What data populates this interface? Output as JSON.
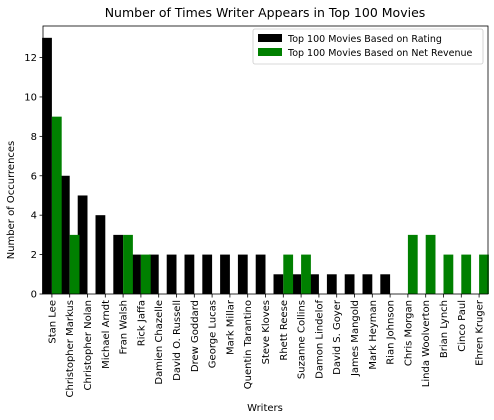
{
  "chart_data": {
    "type": "bar",
    "title": "Number of Times Writer Appears in Top 100 Movies",
    "xlabel": "Writers",
    "ylabel": "Number of Occurrences",
    "ylim": [
      0,
      13.6
    ],
    "yticks": [
      0,
      2,
      4,
      6,
      8,
      10,
      12
    ],
    "legend_position": "top-right",
    "grid": false,
    "categories": [
      "Stan Lee",
      "Christopher Markus",
      "Christopher Nolan",
      "Michael Arndt",
      "Fran Walsh",
      "Rick Jaffa",
      "Damien Chazelle",
      "David O. Russell",
      "Drew Goddard",
      "George Lucas",
      "Mark Millar",
      "Quentin Tarantino",
      "Steve Kloves",
      "Rhett Reese",
      "Suzanne Collins",
      "Damon Lindelof",
      "David S. Goyer",
      "James Mangold",
      "Mark Heyman",
      "Rian Johnson",
      "Chris Morgan",
      "Linda Woolverton",
      "Brian Lynch",
      "Cinco Paul",
      "Ehren Kruger"
    ],
    "series": [
      {
        "name": "Top 100 Movies Based on Rating",
        "color": "#000000",
        "values": [
          13,
          6,
          5,
          4,
          3,
          2,
          2,
          2,
          2,
          2,
          2,
          2,
          2,
          1,
          1,
          1,
          1,
          1,
          1,
          1,
          0,
          0,
          0,
          0,
          0
        ]
      },
      {
        "name": "Top 100 Movies Based on Net Revenue",
        "color": "#008000",
        "values": [
          9,
          3,
          0,
          0,
          3,
          2,
          0,
          0,
          0,
          0,
          0,
          0,
          0,
          2,
          2,
          0,
          0,
          0,
          0,
          0,
          3,
          3,
          2,
          2,
          2
        ]
      }
    ]
  }
}
